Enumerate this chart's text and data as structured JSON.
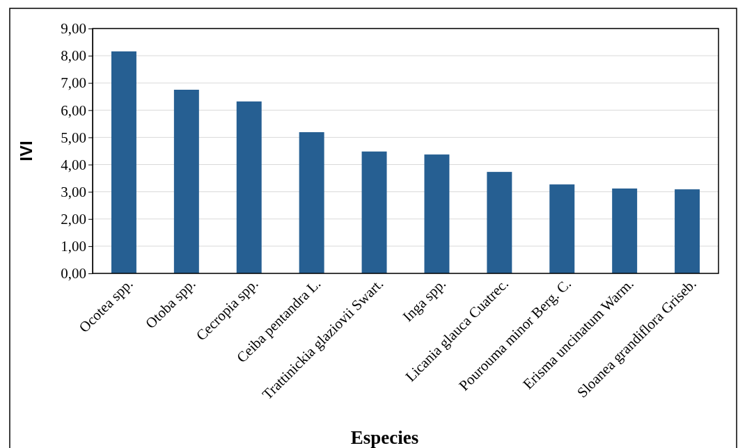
{
  "chart_data": {
    "type": "bar",
    "xlabel": "Especies",
    "ylabel": "IVI",
    "categories": [
      "Ocotea spp.",
      "Otoba spp.",
      "Cecropia spp.",
      "Ceiba pentandra L.",
      "Trattinickia glaziovii Swart.",
      "Inga spp.",
      "Licania glauca Cuatrec.",
      "Pourouma minor Berg. C.",
      "Erisma uncinatum Warm.",
      "Sloanea grandiflora Griseb."
    ],
    "values": [
      8.16,
      6.75,
      6.32,
      5.19,
      4.48,
      4.37,
      3.73,
      3.27,
      3.12,
      3.09
    ],
    "color": "#265f92",
    "ylim": [
      0,
      9
    ],
    "yticks": [
      {
        "value": 0,
        "label": "0,00"
      },
      {
        "value": 1,
        "label": "1,00"
      },
      {
        "value": 2,
        "label": "2,00"
      },
      {
        "value": 3,
        "label": "3,00"
      },
      {
        "value": 4,
        "label": "4,00"
      },
      {
        "value": 5,
        "label": "5,00"
      },
      {
        "value": 6,
        "label": "6,00"
      },
      {
        "value": 7,
        "label": "7,00"
      },
      {
        "value": 8,
        "label": "8,00"
      },
      {
        "value": 9,
        "label": "9,00"
      }
    ],
    "grid": "y"
  }
}
